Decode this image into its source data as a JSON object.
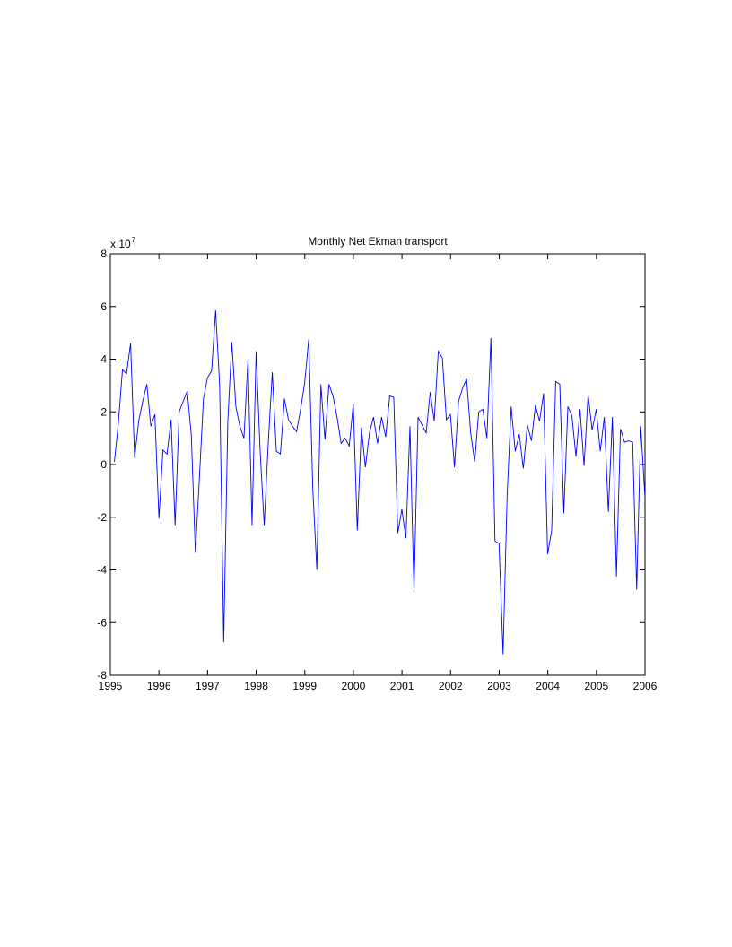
{
  "chart_data": {
    "type": "line",
    "title": "Monthly Net Ekman transport",
    "xlabel": "",
    "ylabel": "",
    "y_multiplier_base": "x 10",
    "y_multiplier_exponent": "7",
    "xlim": [
      1995,
      2006
    ],
    "ylim": [
      -8,
      8
    ],
    "x_ticks": [
      1995,
      1996,
      1997,
      1998,
      1999,
      2000,
      2001,
      2002,
      2003,
      2004,
      2005,
      2006
    ],
    "x_tick_labels": [
      "1995",
      "1996",
      "1997",
      "1998",
      "1999",
      "2000",
      "2001",
      "2002",
      "2003",
      "2004",
      "2005",
      "2006"
    ],
    "y_ticks": [
      -8,
      -6,
      -4,
      -2,
      0,
      2,
      4,
      6,
      8
    ],
    "y_tick_labels": [
      "-8",
      "-6",
      "-4",
      "-2",
      "0",
      "2",
      "4",
      "6",
      "8"
    ],
    "grid": false,
    "series_color": "#0000ff",
    "x_start": 1995.0833,
    "x_step": 0.0833,
    "values": [
      0.1,
      1.6,
      3.6,
      3.45,
      4.6,
      0.25,
      1.65,
      2.4,
      3.05,
      1.45,
      1.9,
      -2.05,
      0.55,
      0.4,
      1.7,
      -2.3,
      2.0,
      2.4,
      2.8,
      1.1,
      -3.35,
      -0.5,
      2.5,
      3.3,
      3.55,
      5.85,
      3.0,
      -6.75,
      1.6,
      4.65,
      2.2,
      1.45,
      1.0,
      4.0,
      -2.3,
      4.3,
      0.5,
      -2.3,
      0.8,
      3.5,
      0.5,
      0.4,
      2.5,
      1.7,
      1.45,
      1.25,
      2.1,
      3.1,
      4.75,
      -0.9,
      -4.0,
      3.05,
      0.95,
      3.05,
      2.6,
      1.8,
      0.8,
      1.0,
      0.7,
      2.3,
      -2.5,
      1.4,
      -0.1,
      1.2,
      1.8,
      0.8,
      1.8,
      1.05,
      2.6,
      2.55,
      -2.6,
      -1.7,
      -2.8,
      1.45,
      -4.85,
      1.8,
      1.5,
      1.2,
      2.75,
      1.65,
      4.3,
      4.05,
      1.7,
      1.9,
      -0.1,
      2.4,
      2.9,
      3.25,
      1.2,
      0.1,
      2.0,
      2.1,
      1.0,
      4.8,
      -2.9,
      -3.0,
      -7.2,
      -1.2,
      2.2,
      0.5,
      1.15,
      -0.15,
      1.5,
      0.9,
      2.25,
      1.65,
      2.7,
      -3.4,
      -2.5,
      3.15,
      3.05,
      -1.85,
      2.2,
      1.85,
      0.3,
      2.1,
      -0.05,
      2.65,
      1.3,
      2.1,
      0.5,
      1.8,
      -1.8,
      1.8,
      -4.25,
      1.35,
      0.85,
      0.9,
      0.85,
      -4.75,
      1.45,
      -1.15
    ]
  }
}
